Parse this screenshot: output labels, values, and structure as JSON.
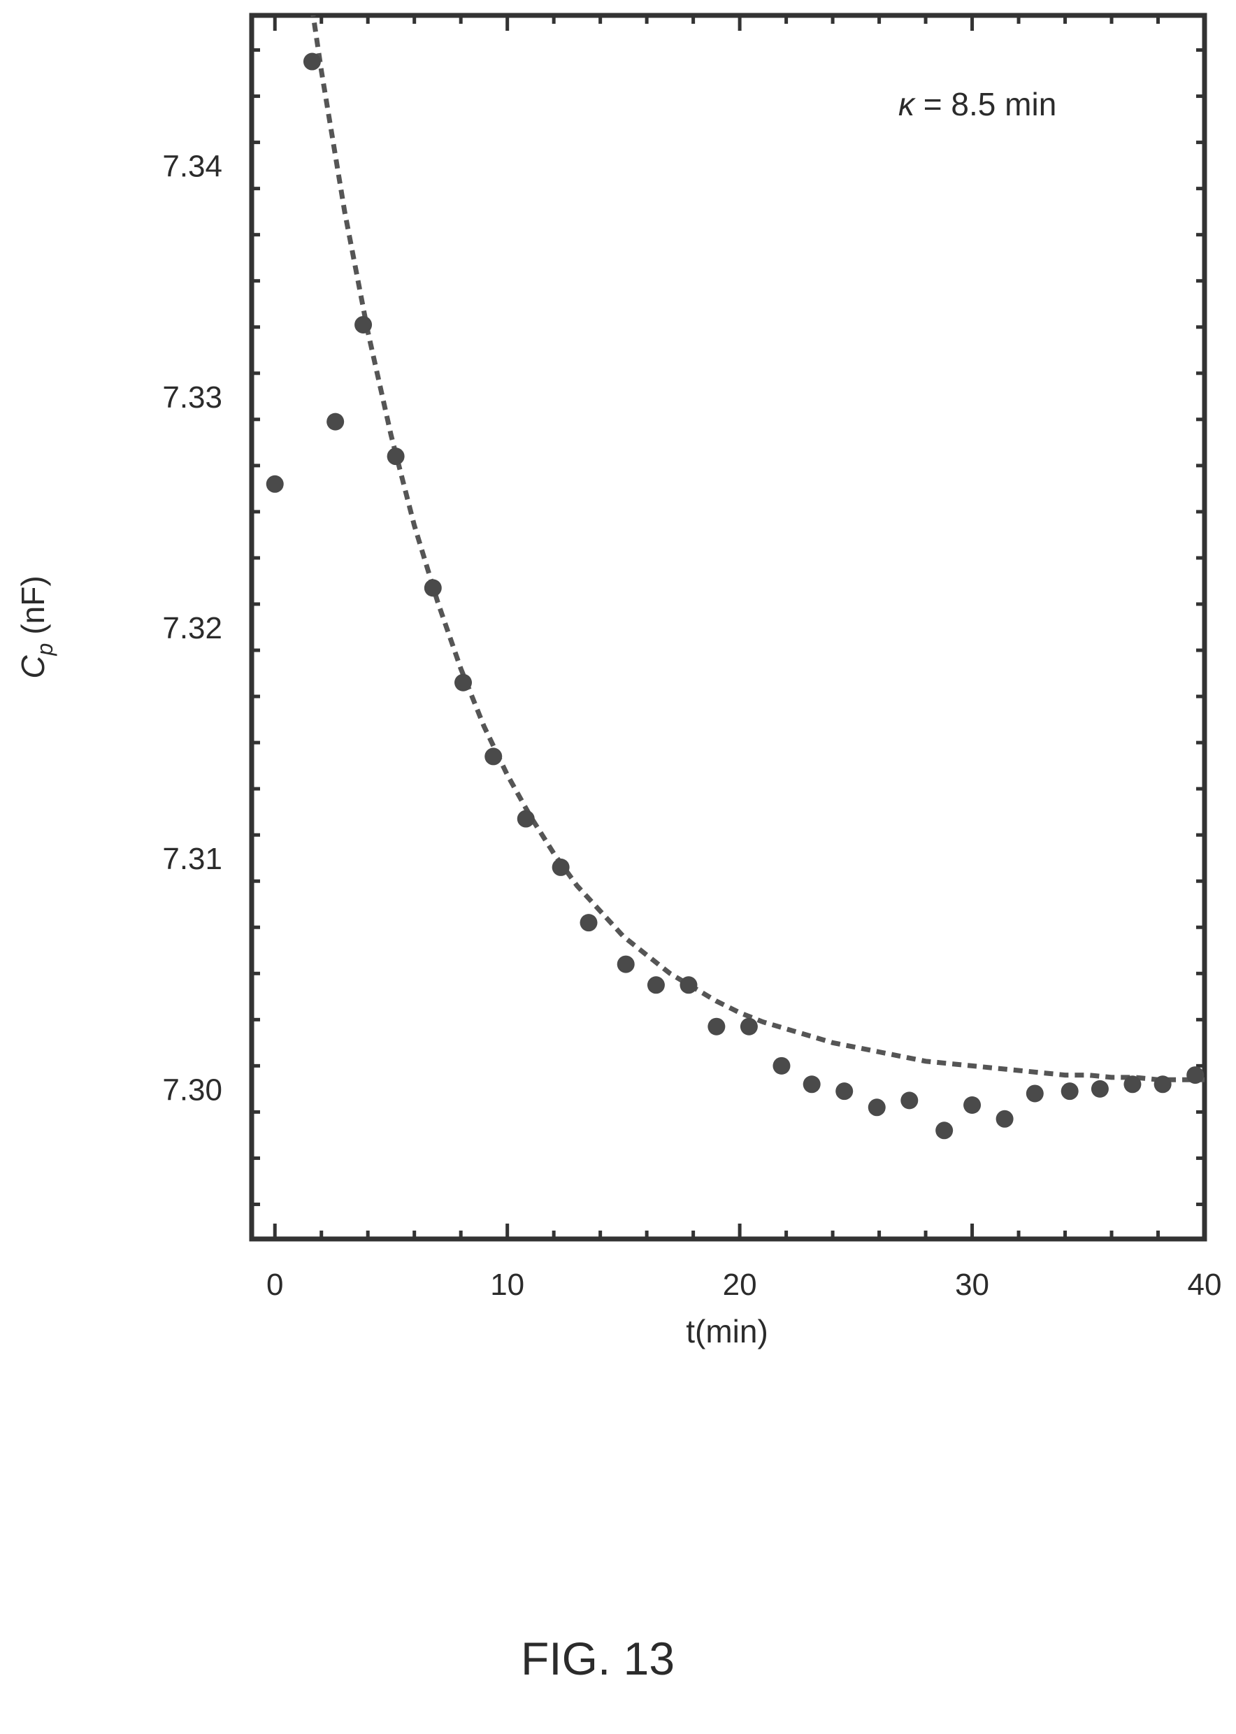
{
  "chart_data": {
    "type": "scatter",
    "xlabel": "t(min)",
    "ylabel": {
      "symbol": "C",
      "subscript": "p",
      "unit": "(nF)"
    },
    "annotation": {
      "symbol": "κ",
      "text": " = 8.5 min"
    },
    "caption": "FIG. 13",
    "xlim": [
      -1,
      40
    ],
    "ylim": [
      7.2935,
      7.3465
    ],
    "xticks": [
      0,
      10,
      20,
      30,
      40
    ],
    "xtick_labels": [
      "0",
      "10",
      "20",
      "30",
      "40"
    ],
    "yticks": [
      7.3,
      7.31,
      7.32,
      7.33,
      7.34
    ],
    "ytick_labels": [
      "7.30",
      "7.31",
      "7.32",
      "7.33",
      "7.34"
    ],
    "grid": false,
    "series": [
      {
        "kind": "points",
        "x": [
          0,
          1.6,
          2.6,
          3.8,
          5.2,
          6.8,
          8.1,
          9.4,
          10.8,
          12.3,
          13.5,
          15.1,
          16.4,
          17.8,
          19.0,
          20.4,
          21.8,
          23.1,
          24.5,
          25.9,
          27.3,
          28.8,
          30.0,
          31.4,
          32.7,
          34.2,
          35.5,
          36.9,
          38.2,
          39.6
        ],
        "y": [
          7.3262,
          7.3445,
          7.3289,
          7.3331,
          7.3274,
          7.3217,
          7.3176,
          7.3144,
          7.3117,
          7.3096,
          7.3072,
          7.3054,
          7.3045,
          7.3045,
          7.3027,
          7.3027,
          7.301,
          7.3002,
          7.2999,
          7.2992,
          7.2995,
          7.2982,
          7.2993,
          7.2987,
          7.2998,
          7.2999,
          7.3,
          7.3002,
          7.3002,
          7.3006
        ],
        "color": "#4a4a4a"
      },
      {
        "kind": "fit",
        "style": "dashed",
        "x": [
          1.5,
          2,
          3,
          4,
          5,
          6,
          7,
          8,
          9,
          10,
          11,
          12,
          13,
          14,
          15,
          16,
          17,
          18,
          19,
          20,
          21,
          22,
          23,
          24,
          25,
          26,
          27,
          28,
          29,
          30,
          31,
          32,
          33,
          34,
          35,
          36,
          37,
          38,
          39,
          40
        ],
        "y": [
          7.3475,
          7.3441,
          7.338,
          7.3328,
          7.3283,
          7.3244,
          7.3211,
          7.3182,
          7.3157,
          7.3136,
          7.3118,
          7.3102,
          7.3088,
          7.3077,
          7.3066,
          7.3058,
          7.305,
          7.3044,
          7.3038,
          7.3033,
          7.3029,
          7.3026,
          7.3023,
          7.302,
          7.3018,
          7.3016,
          7.3014,
          7.3012,
          7.3011,
          7.301,
          7.3009,
          7.3008,
          7.3007,
          7.3006,
          7.3006,
          7.3005,
          7.3005,
          7.3004,
          7.3004,
          7.3004
        ],
        "color": "#555555"
      }
    ]
  }
}
